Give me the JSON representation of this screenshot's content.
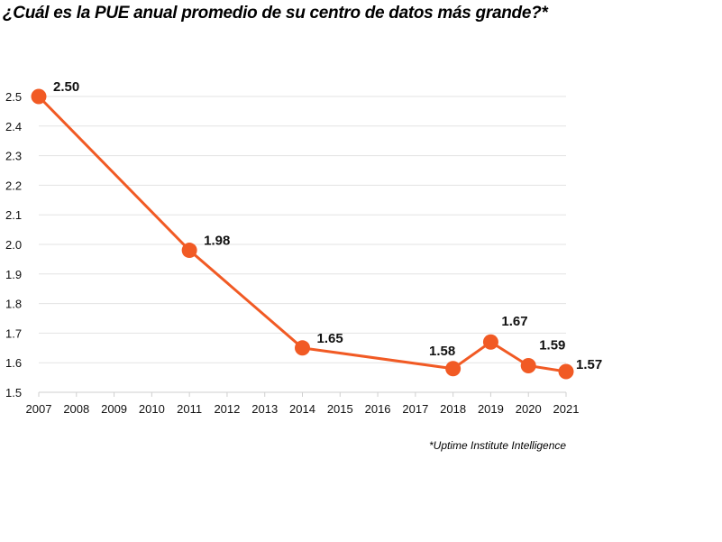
{
  "chart_data": {
    "type": "line",
    "title": "¿Cuál es la PUE anual promedio de su centro de datos más grande?*",
    "note": "*Uptime Institute Intelligence",
    "x_ticks": [
      "2007",
      "2008",
      "2009",
      "2010",
      "2011",
      "2012",
      "2013",
      "2014",
      "2015",
      "2016",
      "2017",
      "2018",
      "2019",
      "2020",
      "2021"
    ],
    "y_ticks": [
      "1.5",
      "1.6",
      "1.7",
      "1.8",
      "1.9",
      "2.0",
      "2.1",
      "2.2",
      "2.3",
      "2.4",
      "2.5"
    ],
    "xlim": [
      2007,
      2021
    ],
    "ylim": [
      1.5,
      2.5
    ],
    "grid": true,
    "series": [
      {
        "color": "#F15A24",
        "points": [
          {
            "x": 2007,
            "y": 2.5,
            "label": "2.50"
          },
          {
            "x": 2011,
            "y": 1.98,
            "label": "1.98"
          },
          {
            "x": 2014,
            "y": 1.65,
            "label": "1.65"
          },
          {
            "x": 2018,
            "y": 1.58,
            "label": "1.58"
          },
          {
            "x": 2019,
            "y": 1.67,
            "label": "1.67"
          },
          {
            "x": 2020,
            "y": 1.59,
            "label": "1.59"
          },
          {
            "x": 2021,
            "y": 1.57,
            "label": "1.57"
          }
        ]
      }
    ]
  }
}
